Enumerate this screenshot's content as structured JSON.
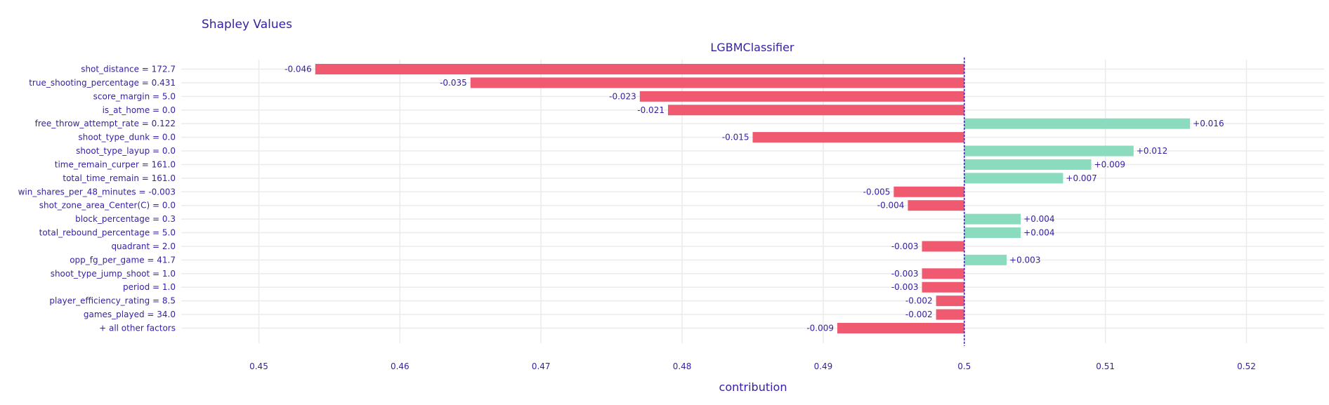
{
  "chart_data": {
    "type": "bar",
    "orientation": "horizontal",
    "title": "Shapley Values",
    "subtitle": "LGBMClassifier",
    "xlabel": "contribution",
    "ylabel": "",
    "xlim": [
      0.4445,
      0.5255
    ],
    "xticks": [
      0.45,
      0.46,
      0.47,
      0.48,
      0.49,
      0.5,
      0.51,
      0.52
    ],
    "xtick_labels": [
      "0.45",
      "0.46",
      "0.47",
      "0.48",
      "0.49",
      "0.5",
      "0.51",
      "0.52"
    ],
    "baseline": 0.5,
    "grid": true,
    "colors": {
      "positive": "#8bdcbe",
      "negative": "#f05a71",
      "baseline_line": "#371ea3",
      "text": "#371ea3",
      "grid": "#ebebeb"
    },
    "categories": [
      "shot_distance = 172.7",
      "true_shooting_percentage = 0.431",
      "score_margin = 5.0",
      "is_at_home = 0.0",
      "free_throw_attempt_rate = 0.122",
      "shoot_type_dunk = 0.0",
      "shoot_type_layup = 0.0",
      "time_remain_curper = 161.0",
      "total_time_remain = 161.0",
      "win_shares_per_48_minutes = -0.003",
      "shot_zone_area_Center(C) = 0.0",
      "block_percentage = 0.3",
      "total_rebound_percentage = 5.0",
      "quadrant = 2.0",
      "opp_fg_per_game = 41.7",
      "shoot_type_jump_shoot = 1.0",
      "period = 1.0",
      "player_efficiency_rating = 8.5",
      "games_played = 34.0",
      "+ all other factors"
    ],
    "values": [
      -0.046,
      -0.035,
      -0.023,
      -0.021,
      0.016,
      -0.015,
      0.012,
      0.009,
      0.007,
      -0.005,
      -0.004,
      0.004,
      0.004,
      -0.003,
      0.003,
      -0.003,
      -0.003,
      -0.002,
      -0.002,
      -0.009
    ],
    "value_labels": [
      "-0.046",
      "-0.035",
      "-0.023",
      "-0.021",
      "+0.016",
      "-0.015",
      "+0.012",
      "+0.009",
      "+0.007",
      "-0.005",
      "-0.004",
      "+0.004",
      "+0.004",
      "-0.003",
      "+0.003",
      "-0.003",
      "-0.003",
      "-0.002",
      "-0.002",
      "-0.009"
    ]
  }
}
